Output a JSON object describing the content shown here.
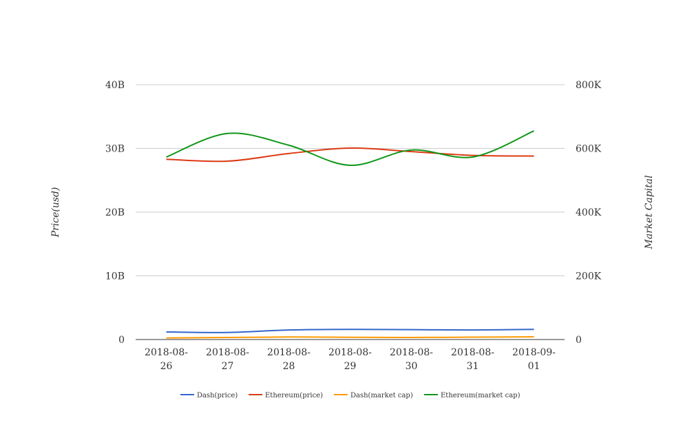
{
  "chart_data": {
    "type": "line",
    "categories": [
      "2018-08-26",
      "2018-08-27",
      "2018-08-28",
      "2018-08-29",
      "2018-08-30",
      "2018-08-31",
      "2018-09-01"
    ],
    "y_left": {
      "label": "Price(usd)",
      "range": [
        0,
        40000000000
      ],
      "ticks": [
        0,
        10000000000,
        20000000000,
        30000000000,
        40000000000
      ],
      "tick_labels": [
        "0",
        "10B",
        "20B",
        "30B",
        "40B"
      ]
    },
    "y_right": {
      "label": "Market Capital",
      "range": [
        0,
        800000
      ],
      "ticks": [
        0,
        200000,
        400000,
        600000,
        800000
      ],
      "tick_labels": [
        "0",
        "200K",
        "400K",
        "600K",
        "800K"
      ]
    },
    "grid": true,
    "legend": "bottom",
    "series": [
      {
        "name": "Dash(price)",
        "axis": "left",
        "color": "#3366cc",
        "values": [
          1190000000,
          1110000000,
          1500000000,
          1600000000,
          1550000000,
          1500000000,
          1600000000
        ]
      },
      {
        "name": "Ethereum(price)",
        "axis": "left",
        "color": "#dc3912",
        "values": [
          28300000000,
          28000000000,
          29200000000,
          30050000000,
          29500000000,
          28900000000,
          28800000000
        ]
      },
      {
        "name": "Dash(market cap)",
        "axis": "right",
        "color": "#ff9900",
        "values": [
          5000,
          6500,
          8000,
          7000,
          6500,
          7500,
          8600
        ]
      },
      {
        "name": "Ethereum(market cap)",
        "axis": "right",
        "color": "#109618",
        "values": [
          573000,
          647000,
          610000,
          547000,
          595000,
          573000,
          655000
        ]
      }
    ]
  }
}
